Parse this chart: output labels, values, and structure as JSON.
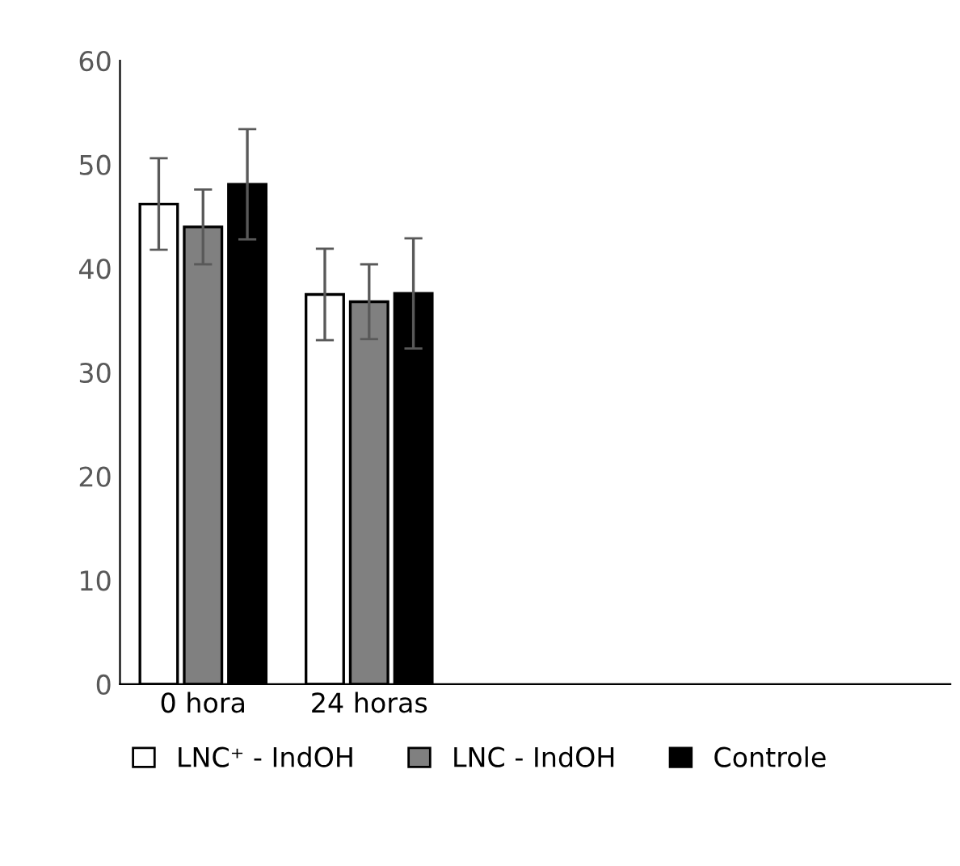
{
  "chart_data": {
    "type": "bar",
    "categories": [
      "0 hora",
      "24 horas",
      null,
      null,
      null
    ],
    "series": [
      {
        "name": "LNC⁺ - IndOH",
        "color": "#ffffff",
        "values": [
          46.2,
          37.5,
          null,
          null,
          null
        ],
        "errors": [
          4.4,
          4.4,
          null,
          null,
          null
        ]
      },
      {
        "name": "LNC - IndOH",
        "color": "#808080",
        "values": [
          44.0,
          36.8,
          null,
          null,
          null
        ],
        "errors": [
          3.6,
          3.6,
          null,
          null,
          null
        ]
      },
      {
        "name": "Controle",
        "color": "#000000",
        "values": [
          48.1,
          37.6,
          null,
          null,
          null
        ],
        "errors": [
          5.3,
          5.3,
          null,
          null,
          null
        ]
      }
    ],
    "ylim": [
      0,
      60
    ],
    "yticks": [
      0,
      10,
      20,
      30,
      40,
      50,
      60
    ],
    "grid": false,
    "legend": "bottom"
  }
}
